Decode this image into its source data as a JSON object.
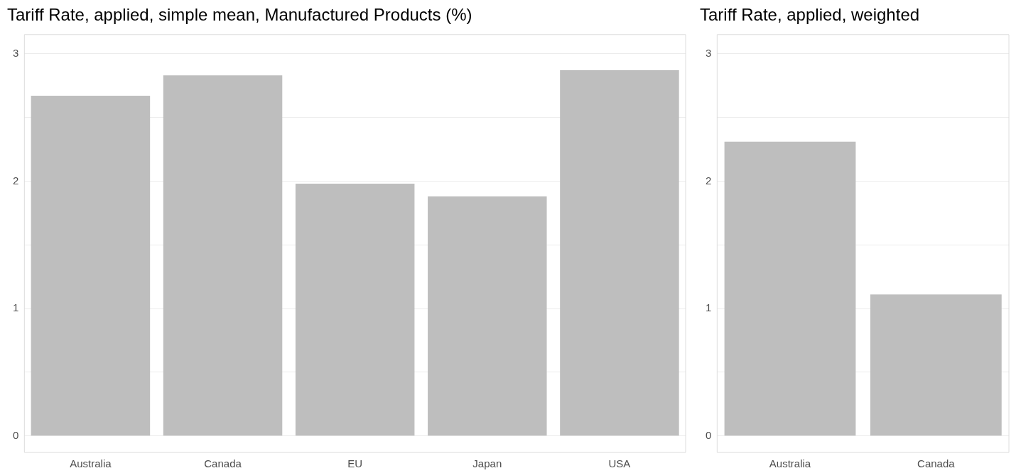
{
  "chart_data": [
    {
      "type": "bar",
      "title": "Tariff Rate, applied, simple mean, Manufactured Products (%)",
      "categories": [
        "Australia",
        "Canada",
        "EU",
        "Japan",
        "USA"
      ],
      "values": [
        2.67,
        2.83,
        1.98,
        1.88,
        2.87
      ],
      "color": "#bebebe",
      "ylim": [
        -0.13,
        3.15
      ],
      "yticks": [
        0,
        {
          "value": 0.5,
          "label": null
        },
        1,
        {
          "value": 1.5,
          "label": null
        },
        2,
        {
          "value": 2.5,
          "label": null
        },
        3
      ],
      "grid": "y",
      "legend": false
    },
    {
      "type": "bar",
      "title": "Tariff Rate, applied, weighted",
      "categories": [
        "Australia",
        "Canada"
      ],
      "values": [
        2.31,
        1.11
      ],
      "color": "#bebebe",
      "ylim": [
        -0.13,
        3.15
      ],
      "yticks": [
        0,
        {
          "value": 0.5,
          "label": null
        },
        1,
        {
          "value": 1.5,
          "label": null
        },
        2,
        {
          "value": 2.5,
          "label": null
        },
        3
      ],
      "grid": "y",
      "legend": false
    }
  ]
}
